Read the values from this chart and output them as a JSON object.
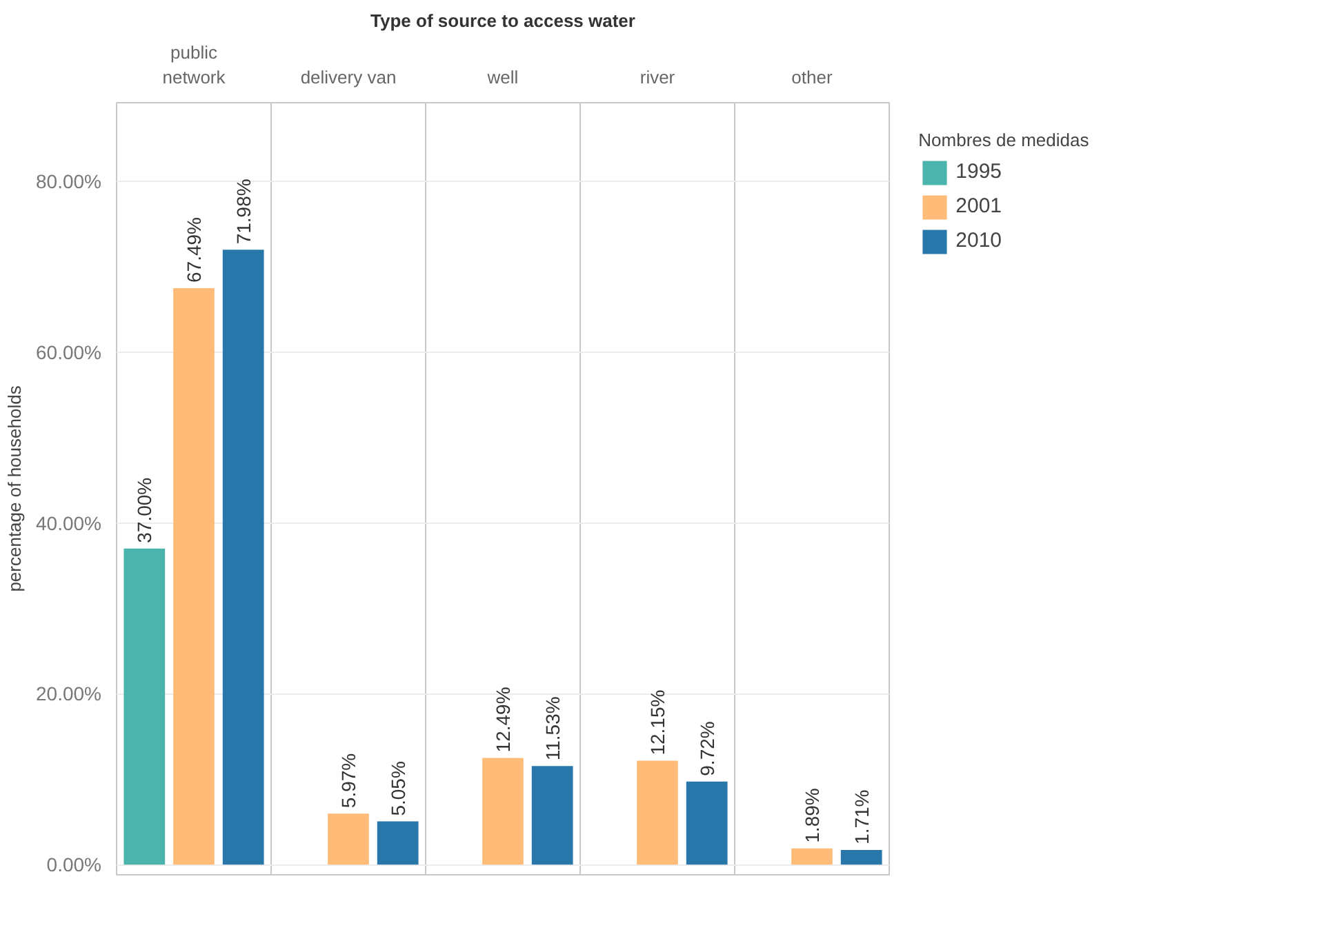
{
  "chart_data": {
    "type": "bar",
    "title": "Type of source to access water",
    "ylabel": "percentage of households",
    "legend_title": "Nombres de medidas",
    "categories": [
      "public network",
      "delivery van",
      "well",
      "river",
      "other"
    ],
    "series": [
      {
        "name": "1995",
        "color": "#4bb5ad",
        "values": [
          37.0,
          null,
          null,
          null,
          null
        ]
      },
      {
        "name": "2001",
        "color": "#ffbc79",
        "values": [
          67.49,
          5.97,
          12.49,
          12.15,
          1.89
        ]
      },
      {
        "name": "2010",
        "color": "#2877aa",
        "values": [
          71.98,
          5.05,
          11.53,
          9.72,
          1.71
        ]
      }
    ],
    "ylim": [
      -1.2,
      89.2
    ],
    "yticks": [
      {
        "value": 0,
        "label": "0.00%"
      },
      {
        "value": 20,
        "label": "20.00%"
      },
      {
        "value": 40,
        "label": "40.00%"
      },
      {
        "value": 60,
        "label": "60.00%"
      },
      {
        "value": 80,
        "label": "80.00%"
      }
    ],
    "value_labels": [
      [
        "37.00%",
        null,
        null,
        null,
        null
      ],
      [
        "67.49%",
        "5.97%",
        "12.49%",
        "12.15%",
        "1.89%"
      ],
      [
        "71.98%",
        "5.05%",
        "11.53%",
        "9.72%",
        "1.71%"
      ]
    ],
    "grid": "y",
    "legend": "right"
  }
}
